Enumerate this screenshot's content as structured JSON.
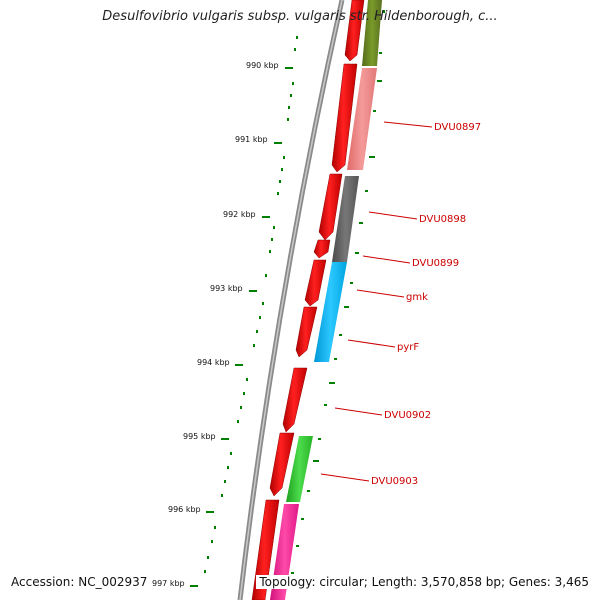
{
  "title": "Desulfovibrio vulgaris subsp. vulgaris str. Hildenborough, c...",
  "footer": {
    "accession": "Accession: NC_002937",
    "summary": "Topology: circular; Length: 3,570,858 bp; Genes: 3,465"
  },
  "scale_labels": [
    "990 kbp",
    "991 kbp",
    "992 kbp",
    "993 kbp",
    "994 kbp",
    "995 kbp",
    "996 kbp",
    "997 kbp"
  ],
  "gene_labels": [
    "DVU0897",
    "DVU0898",
    "DVU0899",
    "gmk",
    "pyrF",
    "DVU0902",
    "DVU0903"
  ],
  "colors": {
    "forward_strand": "#ff0000",
    "backbone": "#808080",
    "tick_color": "#008000",
    "label_color": "#cc0000",
    "cog_olive": "#6b8e23",
    "cog_salmon": "#f08080",
    "cog_gray": "#606060",
    "cog_cyan": "#00bfff",
    "cog_green": "#32cd32",
    "cog_pink": "#ff1493"
  }
}
